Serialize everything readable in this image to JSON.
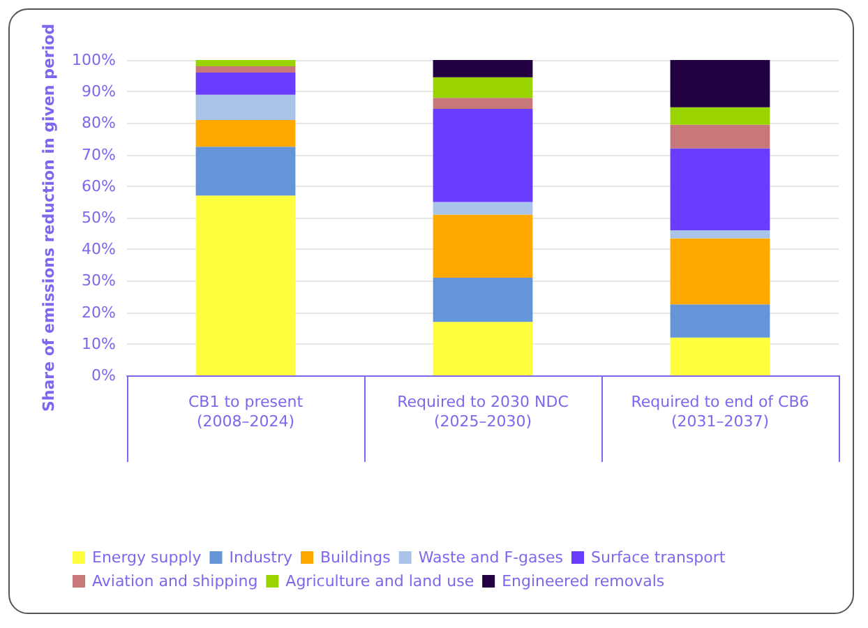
{
  "chart_data": {
    "type": "bar",
    "stacked": true,
    "ylabel": "Share of emissions reduction in given period",
    "categories": [
      "CB1 to present\n(2008–2024)",
      "Required to 2030 NDC\n(2025–2030)",
      "Required to end of CB6\n(2031–2037)"
    ],
    "series": [
      {
        "name": "Energy supply",
        "color": "#ffff40",
        "values": [
          57,
          17,
          12
        ]
      },
      {
        "name": "Industry",
        "color": "#6495d8",
        "values": [
          15.5,
          14,
          10.5
        ]
      },
      {
        "name": "Buildings",
        "color": "#ffa800",
        "values": [
          8.5,
          20,
          21
        ]
      },
      {
        "name": "Waste and F-gases",
        "color": "#a9c4e8",
        "values": [
          8,
          4,
          2.5
        ]
      },
      {
        "name": "Surface transport",
        "color": "#6a3cff",
        "values": [
          7,
          29.5,
          26
        ]
      },
      {
        "name": "Aviation and shipping",
        "color": "#c87878",
        "values": [
          2,
          3.5,
          7.5
        ]
      },
      {
        "name": "Agriculture and land use",
        "color": "#99d400",
        "values": [
          2,
          6.5,
          5.5
        ]
      },
      {
        "name": "Engineered removals",
        "color": "#22003f",
        "values": [
          0,
          5.5,
          15
        ]
      }
    ],
    "ylim": [
      0,
      100
    ],
    "yticks": [
      {
        "value": 0,
        "label": "0%"
      },
      {
        "value": 10,
        "label": "10%"
      },
      {
        "value": 20,
        "label": "20%"
      },
      {
        "value": 30,
        "label": "30%"
      },
      {
        "value": 40,
        "label": "40%"
      },
      {
        "value": 50,
        "label": "50%"
      },
      {
        "value": 60,
        "label": "60%"
      },
      {
        "value": 70,
        "label": "70%"
      },
      {
        "value": 80,
        "label": "80%"
      },
      {
        "value": 90,
        "label": "90%"
      },
      {
        "value": 100,
        "label": "100%"
      }
    ],
    "grid": "y",
    "legend": "bottom"
  }
}
